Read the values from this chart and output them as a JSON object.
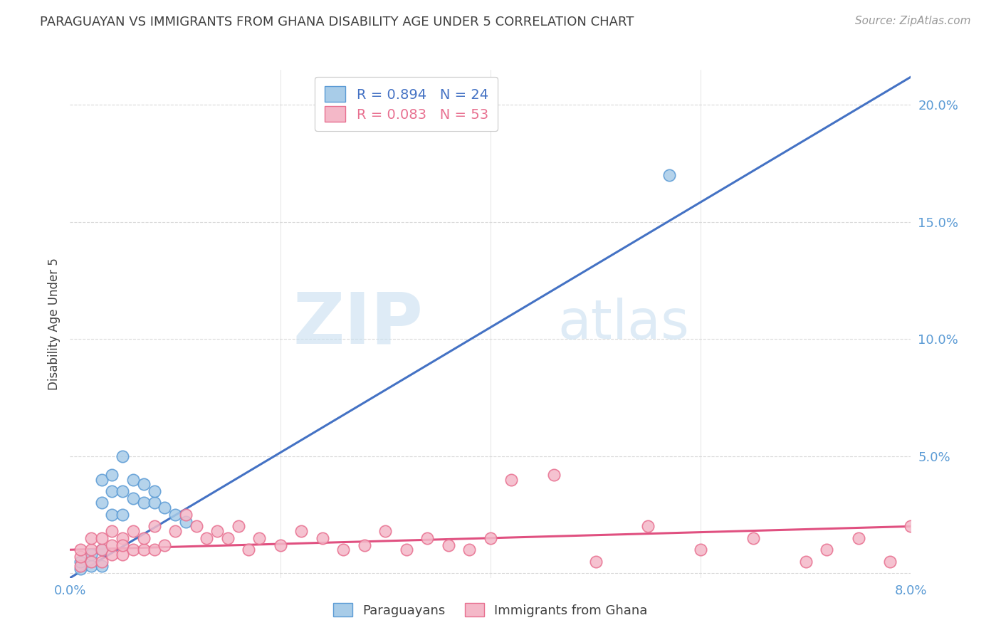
{
  "title": "PARAGUAYAN VS IMMIGRANTS FROM GHANA DISABILITY AGE UNDER 5 CORRELATION CHART",
  "source": "Source: ZipAtlas.com",
  "ylabel": "Disability Age Under 5",
  "watermark_zip": "ZIP",
  "watermark_atlas": "atlas",
  "blue_R": 0.894,
  "blue_N": 24,
  "pink_R": 0.083,
  "pink_N": 53,
  "blue_label": "Paraguayans",
  "pink_label": "Immigrants from Ghana",
  "xlim": [
    0.0,
    0.08
  ],
  "ylim": [
    -0.002,
    0.215
  ],
  "yticks": [
    0.0,
    0.05,
    0.1,
    0.15,
    0.2
  ],
  "ytick_labels": [
    "",
    "5.0%",
    "10.0%",
    "15.0%",
    "20.0%"
  ],
  "xticks": [
    0.0,
    0.02,
    0.04,
    0.06,
    0.08
  ],
  "xtick_labels": [
    "0.0%",
    "",
    "",
    "",
    "8.0%"
  ],
  "blue_color": "#a8cce8",
  "blue_edge_color": "#5b9bd5",
  "blue_line_color": "#4472c4",
  "pink_color": "#f4b8c8",
  "pink_edge_color": "#e87090",
  "pink_line_color": "#e05080",
  "grid_color": "#d9d9d9",
  "title_color": "#404040",
  "axis_tick_color": "#5b9bd5",
  "blue_scatter_x": [
    0.001,
    0.001,
    0.002,
    0.002,
    0.003,
    0.003,
    0.003,
    0.003,
    0.004,
    0.004,
    0.004,
    0.005,
    0.005,
    0.005,
    0.006,
    0.006,
    0.007,
    0.007,
    0.008,
    0.008,
    0.009,
    0.01,
    0.011,
    0.057
  ],
  "blue_scatter_y": [
    0.002,
    0.005,
    0.003,
    0.008,
    0.003,
    0.01,
    0.03,
    0.04,
    0.025,
    0.035,
    0.042,
    0.025,
    0.035,
    0.05,
    0.032,
    0.04,
    0.03,
    0.038,
    0.03,
    0.035,
    0.028,
    0.025,
    0.022,
    0.17
  ],
  "pink_scatter_x": [
    0.001,
    0.001,
    0.001,
    0.002,
    0.002,
    0.002,
    0.003,
    0.003,
    0.003,
    0.004,
    0.004,
    0.004,
    0.005,
    0.005,
    0.005,
    0.006,
    0.006,
    0.007,
    0.007,
    0.008,
    0.008,
    0.009,
    0.01,
    0.011,
    0.012,
    0.013,
    0.014,
    0.015,
    0.016,
    0.017,
    0.018,
    0.02,
    0.022,
    0.024,
    0.026,
    0.028,
    0.03,
    0.032,
    0.034,
    0.036,
    0.038,
    0.04,
    0.042,
    0.046,
    0.05,
    0.055,
    0.06,
    0.065,
    0.07,
    0.072,
    0.075,
    0.078,
    0.08
  ],
  "pink_scatter_y": [
    0.003,
    0.007,
    0.01,
    0.005,
    0.01,
    0.015,
    0.005,
    0.01,
    0.015,
    0.008,
    0.012,
    0.018,
    0.008,
    0.015,
    0.012,
    0.01,
    0.018,
    0.01,
    0.015,
    0.02,
    0.01,
    0.012,
    0.018,
    0.025,
    0.02,
    0.015,
    0.018,
    0.015,
    0.02,
    0.01,
    0.015,
    0.012,
    0.018,
    0.015,
    0.01,
    0.012,
    0.018,
    0.01,
    0.015,
    0.012,
    0.01,
    0.015,
    0.04,
    0.042,
    0.005,
    0.02,
    0.01,
    0.015,
    0.005,
    0.01,
    0.015,
    0.005,
    0.02
  ],
  "blue_line_x": [
    0.0,
    0.08
  ],
  "blue_line_y": [
    -0.002,
    0.212
  ],
  "pink_line_x": [
    0.0,
    0.08
  ],
  "pink_line_y": [
    0.01,
    0.02
  ]
}
